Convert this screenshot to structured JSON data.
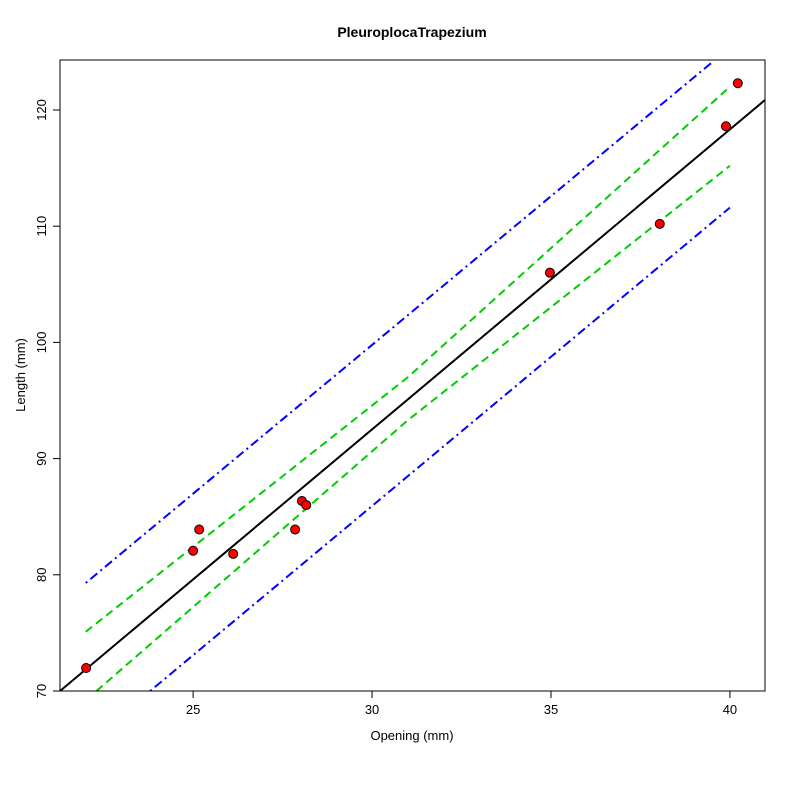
{
  "chart_data": {
    "type": "scatter",
    "title": "PleuroplocaTrapezium",
    "xlabel": "Opening (mm)",
    "ylabel": "Length (mm)",
    "xlim": [
      21.28,
      40.98
    ],
    "ylim": [
      70,
      124.3
    ],
    "xticks": [
      25,
      30,
      35,
      40
    ],
    "yticks": [
      70,
      80,
      90,
      100,
      110,
      120
    ],
    "points": {
      "color": "#ff0000",
      "x": [
        22.01,
        25.0,
        25.17,
        26.12,
        27.85,
        28.04,
        28.16,
        34.97,
        38.04,
        39.89,
        40.22
      ],
      "y": [
        71.98,
        82.07,
        83.9,
        81.8,
        83.9,
        86.35,
        86.0,
        106.0,
        110.2,
        118.6,
        122.3
      ]
    },
    "lines": [
      {
        "color": "#000000",
        "dash": "solid",
        "x": [
          21.28,
          40.98
        ],
        "y": [
          70.0,
          120.86
        ]
      },
      {
        "color": "#00cd00",
        "dash": "dashed",
        "x": [
          22.0,
          31.0,
          40.0
        ],
        "y": [
          75.1,
          97.0,
          122.0
        ]
      },
      {
        "color": "#00cd00",
        "dash": "dashed",
        "x": [
          22.3,
          31.0,
          40.0
        ],
        "y": [
          70.0,
          93.3,
          115.2
        ]
      },
      {
        "color": "#0000ff",
        "dash": "dotdash",
        "x": [
          22.0,
          39.5
        ],
        "y": [
          79.3,
          124.1
        ]
      },
      {
        "color": "#0000ff",
        "dash": "dotdash",
        "x": [
          23.8,
          40.0
        ],
        "y": [
          70.0,
          111.6
        ]
      }
    ]
  }
}
